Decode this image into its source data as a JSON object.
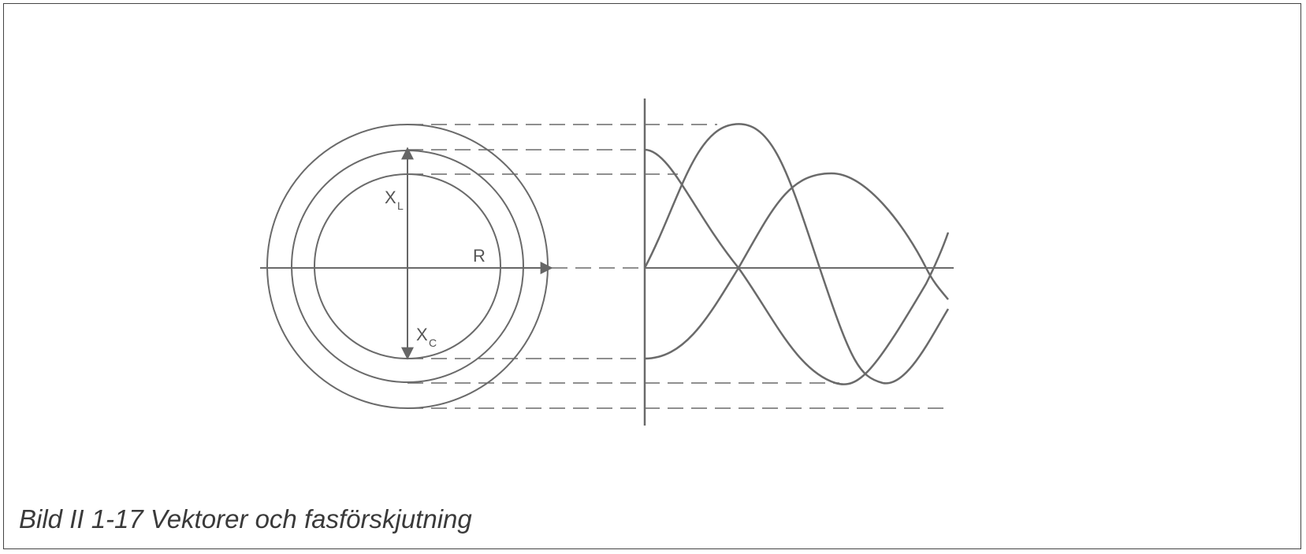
{
  "caption": "Bild II 1-17 Vektorer och fasförskjutning",
  "labels": {
    "xl_main": "X",
    "xl_sub": "L",
    "r": "R",
    "xc_main": "X",
    "xc_sub": "C"
  },
  "colors": {
    "stroke": "#6a6a6a",
    "caption": "#3a3a3a"
  }
}
